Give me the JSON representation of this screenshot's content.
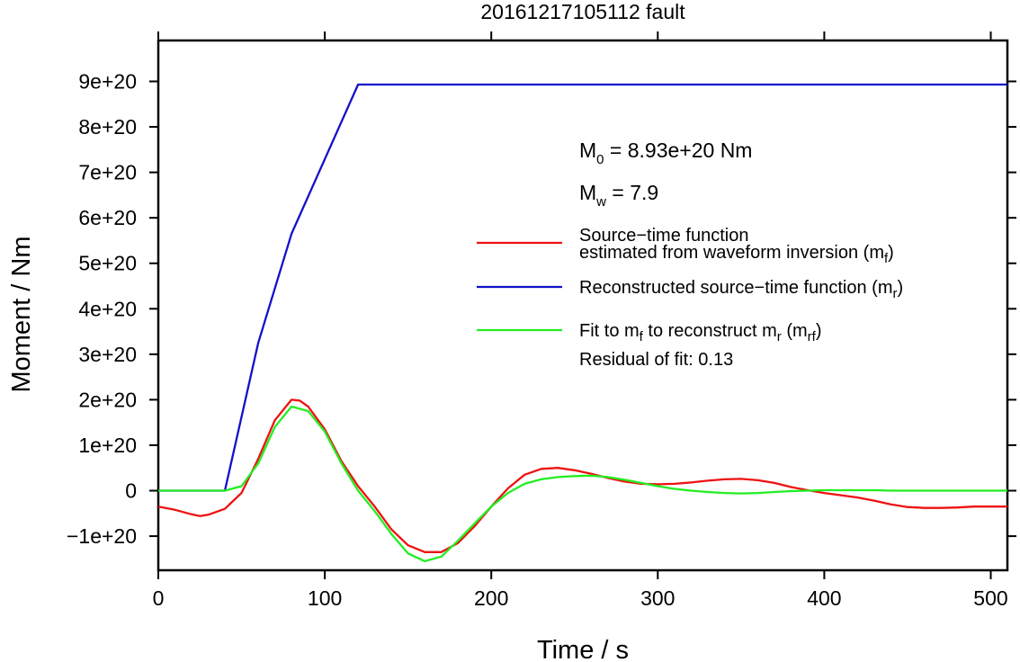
{
  "chart_data": {
    "type": "line",
    "title": "20161217105112 fault",
    "xlabel": "Time / s",
    "ylabel": "Moment / Nm",
    "xlim": [
      0,
      510
    ],
    "ylim": [
      -1.75e+20,
      9.9e+20
    ],
    "x_ticks": [
      0,
      100,
      200,
      300,
      400,
      500
    ],
    "x_tick_labels": [
      "0",
      "100",
      "200",
      "300",
      "400",
      "500"
    ],
    "y_ticks": [
      -1e+20,
      0,
      1e+20,
      2e+20,
      3e+20,
      4e+20,
      5e+20,
      6e+20,
      7e+20,
      8e+20,
      9e+20
    ],
    "y_tick_labels": [
      "−1e+20",
      "0",
      "1e+20",
      "2e+20",
      "3e+20",
      "4e+20",
      "5e+20",
      "6e+20",
      "7e+20",
      "8e+20",
      "9e+20"
    ],
    "grid": false,
    "legend_position": "right",
    "annotations": {
      "m0": {
        "symbol": "M",
        "sub": "0",
        "rest": " = 8.93e+20 Nm"
      },
      "mw": {
        "symbol": "M",
        "sub": "w",
        "rest": " = 7.9"
      },
      "residual": "Residual of fit: 0.13"
    },
    "legend": [
      {
        "line1": "Source−time function",
        "line2": "estimated from waveform inversion (m",
        "sub": "f",
        "tail": ")",
        "color": "#ee1111"
      },
      {
        "line1": "Reconstructed source−time function (m",
        "sub": "r",
        "tail": ")",
        "color": "#1111cc"
      },
      {
        "line1": "Fit to m",
        "sub": "f",
        "mid": " to reconstruct m",
        "sub2": "r",
        "mid2": " (m",
        "sub3": "rf",
        "tail": ")",
        "color": "#22ee22"
      }
    ],
    "series": [
      {
        "key": "mf",
        "color": "#ee1111",
        "x": [
          0,
          10,
          20,
          25,
          30,
          40,
          50,
          60,
          70,
          80,
          85,
          90,
          100,
          110,
          120,
          130,
          140,
          150,
          160,
          170,
          180,
          190,
          200,
          210,
          220,
          230,
          240,
          250,
          260,
          270,
          280,
          290,
          300,
          310,
          320,
          330,
          340,
          350,
          360,
          370,
          380,
          390,
          400,
          410,
          420,
          430,
          440,
          450,
          460,
          470,
          480,
          490,
          500,
          510
        ],
        "y": [
          -3.5e+19,
          -4.2e+19,
          -5.2e+19,
          -5.6e+19,
          -5.3e+19,
          -4e+19,
          -5e+18,
          7e+19,
          1.55e+20,
          2e+20,
          1.98e+20,
          1.85e+20,
          1.35e+20,
          6.5e+19,
          1e+19,
          -3.5e+19,
          -8.5e+19,
          -1.2e+20,
          -1.35e+20,
          -1.35e+20,
          -1.15e+20,
          -7.8e+19,
          -3.5e+19,
          5e+18,
          3.5e+19,
          4.8e+19,
          5e+19,
          4.5e+19,
          3.7e+19,
          2.8e+19,
          2e+19,
          1.5e+19,
          1.4e+19,
          1.5e+19,
          1.8e+19,
          2.2e+19,
          2.5e+19,
          2.6e+19,
          2.3e+19,
          1.7e+19,
          8e+18,
          1e+18,
          -5e+18,
          -1e+19,
          -1.5e+19,
          -2.2e+19,
          -3e+19,
          -3.6e+19,
          -3.8e+19,
          -3.8e+19,
          -3.7e+19,
          -3.5e+19,
          -3.5e+19,
          -3.5e+19
        ]
      },
      {
        "key": "mr",
        "color": "#1111cc",
        "x": [
          0,
          40,
          60,
          80,
          120,
          510
        ],
        "y": [
          0,
          0,
          3.25e+20,
          5.65e+20,
          8.93e+20,
          8.93e+20
        ]
      },
      {
        "key": "mrf",
        "color": "#22ee22",
        "x": [
          0,
          40,
          50,
          60,
          70,
          80,
          90,
          100,
          110,
          120,
          130,
          140,
          150,
          160,
          170,
          180,
          190,
          200,
          210,
          220,
          230,
          240,
          250,
          260,
          270,
          280,
          290,
          300,
          310,
          320,
          330,
          340,
          350,
          360,
          370,
          380,
          390,
          400,
          410,
          420,
          430,
          440,
          450,
          460,
          470,
          480,
          490,
          500,
          510
        ],
        "y": [
          0,
          0,
          1e+19,
          6e+19,
          1.4e+20,
          1.85e+20,
          1.75e+20,
          1.3e+20,
          6e+19,
          0.0,
          -4.5e+19,
          -9.5e+19,
          -1.38e+20,
          -1.55e+20,
          -1.45e+20,
          -1.1e+20,
          -7.2e+19,
          -3.5e+19,
          -5e+18,
          1.5e+19,
          2.5e+19,
          3e+19,
          3.2e+19,
          3.3e+19,
          3e+19,
          2.4e+19,
          1.7e+19,
          1e+19,
          4e+18,
          0.0,
          -3e+18,
          -5e+18,
          -6e+18,
          -5e+18,
          -3e+18,
          -1e+18,
          0.0,
          1e+18,
          1e+18,
          1e+18,
          1e+18,
          0.0,
          0.0,
          0.0,
          0.0,
          0.0,
          0.0,
          0.0,
          0.0
        ]
      }
    ]
  }
}
